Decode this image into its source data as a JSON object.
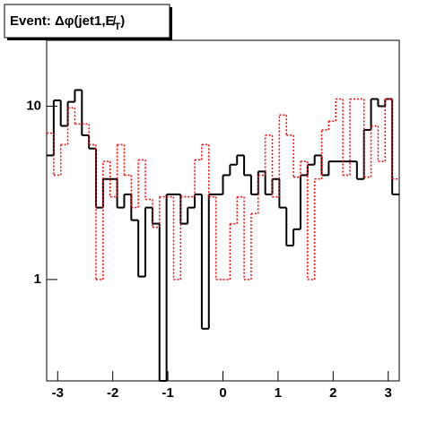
{
  "chart_data": {
    "type": "histogram",
    "title": "Event: Δφ(jet1,E̸",
    "title_sub": "T",
    "title_end": ")",
    "bins": [
      -3.2,
      -3.072,
      -2.944,
      -2.816,
      -2.688,
      -2.56,
      -2.432,
      -2.304,
      -2.176,
      -2.048,
      -1.92,
      -1.792,
      -1.664,
      -1.536,
      -1.408,
      -1.28,
      -1.152,
      -1.024,
      -0.896,
      -0.768,
      -0.64,
      -0.512,
      -0.384,
      -0.256,
      -0.128,
      0,
      0.128,
      0.256,
      0.384,
      0.512,
      0.64,
      0.768,
      0.896,
      1.024,
      1.152,
      1.28,
      1.408,
      1.536,
      1.664,
      1.792,
      1.92,
      2.048,
      2.176,
      2.304,
      2.432,
      2.56,
      2.688,
      2.816,
      2.944,
      3.072,
      3.2
    ],
    "series": [
      {
        "color": "#000000",
        "dash": "solid",
        "values": [
          5.2,
          10.8,
          7.7,
          10.6,
          12.4,
          6.8,
          5.7,
          2.6,
          3.8,
          3.8,
          2.6,
          3.1,
          2.2,
          1.04,
          2.6,
          2.1,
          0,
          3.1,
          3.1,
          2.1,
          2.6,
          3.1,
          0.52,
          3.1,
          3.1,
          4,
          4.6,
          5.2,
          4,
          3.1,
          4.2,
          3.1,
          3.8,
          2.6,
          1.57,
          1.95,
          4,
          4.6,
          5.2,
          4,
          4.8,
          4.8,
          4.8,
          4.8,
          3.8,
          7.3,
          11,
          10,
          11,
          3.1
        ]
      },
      {
        "color": "#ff0000",
        "dash": "dotted",
        "values": [
          7,
          4,
          6,
          9.8,
          7.9,
          7.9,
          6,
          1,
          4.8,
          3,
          6,
          4,
          2.6,
          4.9,
          2.9,
          2,
          3,
          3,
          1,
          3,
          3,
          4.9,
          6,
          3,
          1,
          1,
          2.1,
          3,
          1,
          2.4,
          4,
          6.8,
          3,
          8.9,
          6.8,
          3.9,
          4.8,
          1,
          3.8,
          7.3,
          8.2,
          11,
          4,
          11,
          11,
          3.9,
          7.7,
          4.8,
          11,
          3.8
        ]
      }
    ],
    "xlim": [
      -3.2,
      3.2
    ],
    "xticks": [
      -3,
      -2,
      -1,
      0,
      1,
      2,
      3
    ],
    "ylim": [
      0.26,
      24
    ],
    "yticks": [
      1,
      10
    ],
    "ylog": true
  }
}
